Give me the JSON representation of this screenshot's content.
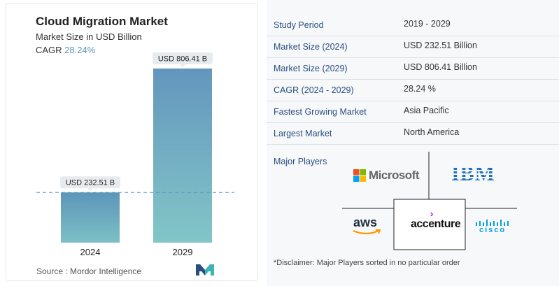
{
  "chart_data": {
    "type": "bar",
    "title": "Cloud Migration Market",
    "subtitle": "Market Size in USD Billion",
    "cagr_label": "CAGR",
    "cagr_value": "28.24%",
    "categories": [
      "2024",
      "2029"
    ],
    "values": [
      232.51,
      806.41
    ],
    "data_labels": [
      "USD 232.51 B",
      "USD 806.41 B"
    ],
    "bar_colors_top": [
      "#5d95b9",
      "#6496bd"
    ],
    "bar_colors_bottom": [
      "#7cc0c6",
      "#82c6c8"
    ],
    "reference_line": 232.51,
    "ylim": [
      0,
      806.41
    ],
    "grid": false
  },
  "source": "Source :  Mordor Intelligence",
  "info": {
    "rows": [
      {
        "label": "Study Period",
        "value": "2019 - 2029"
      },
      {
        "label": "Market Size (2024)",
        "value": "USD 232.51 Billion"
      },
      {
        "label": "Market Size (2029)",
        "value": "USD 806.41 Billion"
      },
      {
        "label": "CAGR (2024 - 2029)",
        "value": "28.24 %"
      },
      {
        "label": "Fastest Growing Market",
        "value": "Asia Pacific"
      },
      {
        "label": "Largest Market",
        "value": "North America"
      }
    ],
    "players_title": "Major Players",
    "players": [
      "Microsoft",
      "IBM",
      "aws",
      "accenture",
      "cisco"
    ],
    "disclaimer": "*Disclaimer: Major Players sorted in no particular order"
  },
  "colors": {
    "label_blue": "#2a4e80",
    "accent": "#5b96b7"
  }
}
